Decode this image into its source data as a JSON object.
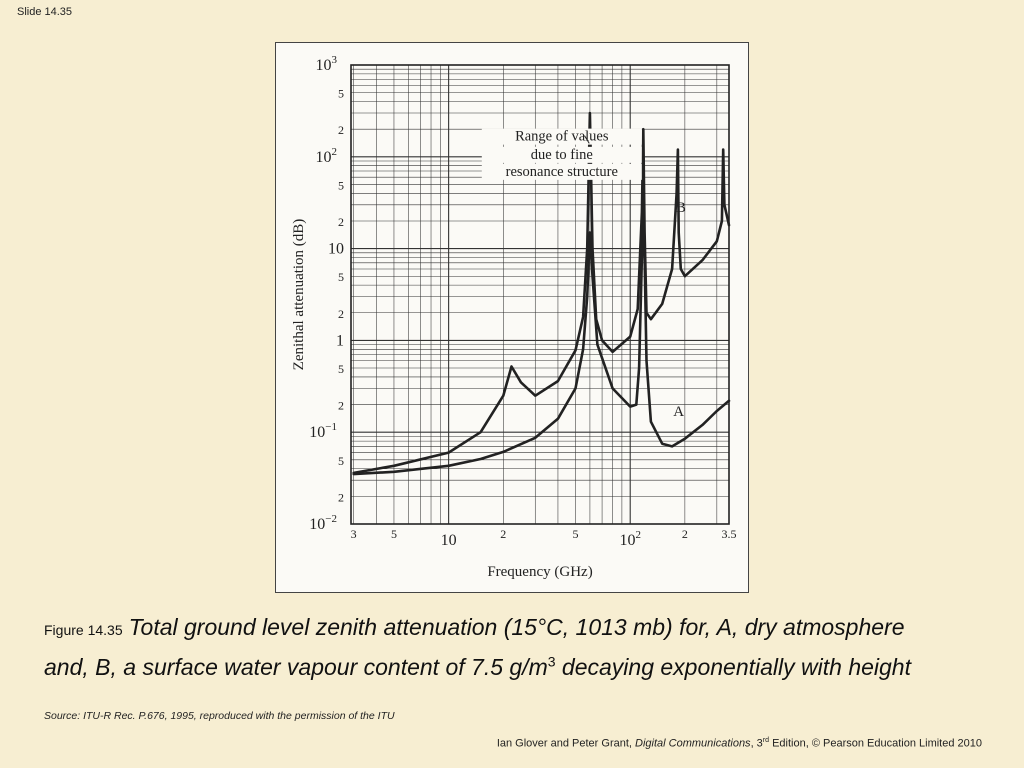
{
  "slide": {
    "label": "Slide 14.35"
  },
  "figure": {
    "label": "Figure 14.35",
    "caption_part1": "Total ground level zenith attenuation (15°C, 1013 mb) for, A, dry atmosphere and, B, a surface water vapour content of 7.5 g/m",
    "caption_sup": "3",
    "caption_part2": " decaying exponentially with height"
  },
  "source": "Source: ITU-R Rec. P.676, 1995, reproduced with the permission of the ITU",
  "credit": {
    "authors": "Ian Glover and Peter Grant, ",
    "book": "Digital Communications",
    "edition_prefix": ", 3",
    "edition_sup": "rd",
    "rest": " Edition, © Pearson Education Limited 2010"
  },
  "colors": {
    "background": "#f7eed2",
    "figure_bg": "#fbfaf6",
    "ink": "#222222"
  },
  "chart_data": {
    "type": "line",
    "xlabel": "Frequency (GHz)",
    "ylabel": "Zenithal attenuation (dB)",
    "xscale": "log",
    "yscale": "log",
    "xlim": [
      2.9,
      350
    ],
    "ylim": [
      0.01,
      1000
    ],
    "grid": true,
    "x_ticks": [
      {
        "v": 3,
        "base": "3",
        "exp": ""
      },
      {
        "v": 5,
        "base": "5",
        "exp": ""
      },
      {
        "v": 10,
        "base": "10",
        "exp": ""
      },
      {
        "v": 20,
        "base": "2",
        "exp": ""
      },
      {
        "v": 50,
        "base": "5",
        "exp": ""
      },
      {
        "v": 100,
        "base": "10",
        "exp": "2"
      },
      {
        "v": 200,
        "base": "2",
        "exp": ""
      },
      {
        "v": 350,
        "base": "3.5",
        "exp": ""
      }
    ],
    "y_ticks": [
      {
        "v": 1000,
        "base": "10",
        "exp": "3"
      },
      {
        "v": 500,
        "base": "5",
        "exp": ""
      },
      {
        "v": 200,
        "base": "2",
        "exp": ""
      },
      {
        "v": 100,
        "base": "10",
        "exp": "2"
      },
      {
        "v": 50,
        "base": "5",
        "exp": ""
      },
      {
        "v": 20,
        "base": "2",
        "exp": ""
      },
      {
        "v": 10,
        "base": "10",
        "exp": ""
      },
      {
        "v": 5,
        "base": "5",
        "exp": ""
      },
      {
        "v": 2,
        "base": "2",
        "exp": ""
      },
      {
        "v": 1,
        "base": "1",
        "exp": ""
      },
      {
        "v": 0.5,
        "base": "5",
        "exp": ""
      },
      {
        "v": 0.2,
        "base": "2",
        "exp": ""
      },
      {
        "v": 0.1,
        "base": "10",
        "exp": "−1"
      },
      {
        "v": 0.05,
        "base": "5",
        "exp": ""
      },
      {
        "v": 0.02,
        "base": "2",
        "exp": ""
      },
      {
        "v": 0.01,
        "base": "10",
        "exp": "−2"
      }
    ],
    "series": [
      {
        "name": "A",
        "points": [
          [
            3,
            0.035
          ],
          [
            5,
            0.037
          ],
          [
            10,
            0.043
          ],
          [
            15,
            0.051
          ],
          [
            20,
            0.061
          ],
          [
            30,
            0.087
          ],
          [
            40,
            0.14
          ],
          [
            50,
            0.3
          ],
          [
            55,
            0.8
          ],
          [
            58,
            3
          ],
          [
            60,
            15
          ],
          [
            62,
            5
          ],
          [
            66,
            0.9
          ],
          [
            80,
            0.3
          ],
          [
            100,
            0.19
          ],
          [
            108,
            0.2
          ],
          [
            112,
            0.5
          ],
          [
            116,
            8
          ],
          [
            118,
            25
          ],
          [
            120,
            8
          ],
          [
            123,
            0.6
          ],
          [
            130,
            0.13
          ],
          [
            150,
            0.075
          ],
          [
            170,
            0.07
          ],
          [
            200,
            0.085
          ],
          [
            250,
            0.12
          ],
          [
            300,
            0.17
          ],
          [
            350,
            0.22
          ]
        ]
      },
      {
        "name": "B",
        "points": [
          [
            3,
            0.036
          ],
          [
            5,
            0.043
          ],
          [
            10,
            0.06
          ],
          [
            15,
            0.1
          ],
          [
            20,
            0.25
          ],
          [
            22.2,
            0.52
          ],
          [
            25,
            0.35
          ],
          [
            30,
            0.25
          ],
          [
            40,
            0.36
          ],
          [
            50,
            0.78
          ],
          [
            55,
            1.8
          ],
          [
            58,
            10
          ],
          [
            60,
            300
          ],
          [
            62,
            10
          ],
          [
            65,
            1.7
          ],
          [
            70,
            1.0
          ],
          [
            80,
            0.75
          ],
          [
            100,
            1.1
          ],
          [
            110,
            2.2
          ],
          [
            116,
            25
          ],
          [
            118,
            200
          ],
          [
            120,
            15
          ],
          [
            123,
            2
          ],
          [
            130,
            1.7
          ],
          [
            150,
            2.5
          ],
          [
            170,
            6
          ],
          [
            180,
            40
          ],
          [
            183,
            120
          ],
          [
            185,
            15
          ],
          [
            190,
            6
          ],
          [
            200,
            5
          ],
          [
            250,
            7.5
          ],
          [
            300,
            12
          ],
          [
            320,
            20
          ],
          [
            325,
            120
          ],
          [
            330,
            30
          ],
          [
            350,
            18
          ]
        ]
      }
    ],
    "annotations": [
      {
        "text": "Range of values",
        "x": 42,
        "y": 150
      },
      {
        "text": "due to fine",
        "x": 42,
        "y": 95
      },
      {
        "text": "resonance structure",
        "x": 42,
        "y": 62
      },
      {
        "text": "B",
        "x": 190,
        "y": 25
      },
      {
        "text": "A",
        "x": 185,
        "y": 0.15
      }
    ]
  }
}
